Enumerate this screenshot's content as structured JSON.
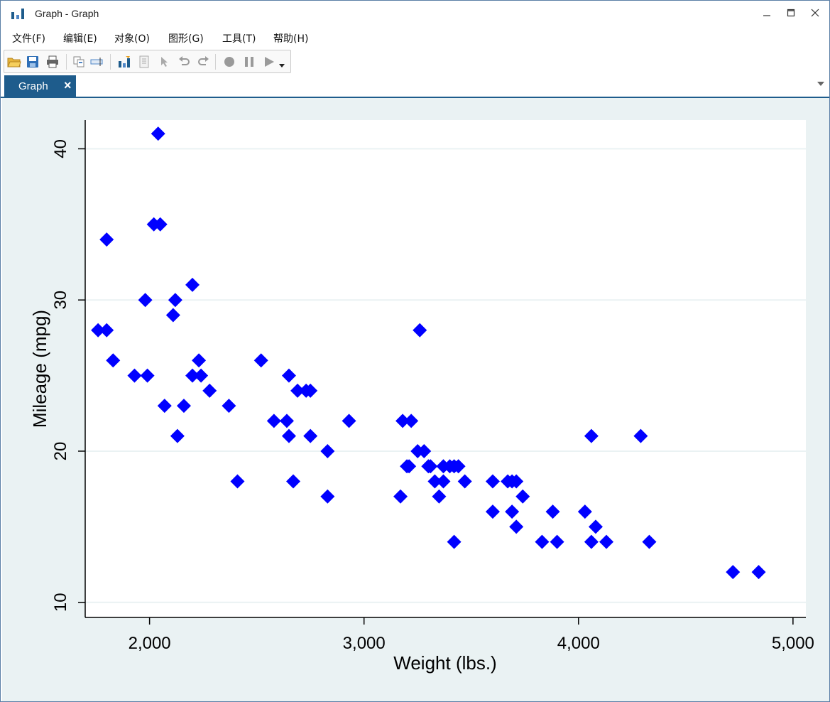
{
  "window": {
    "title": "Graph - Graph",
    "controls": {
      "minimize_icon": "minimize-icon",
      "maximize_icon": "maximize-icon",
      "close_icon": "close-icon"
    }
  },
  "menu": [
    {
      "label": "文件(F)"
    },
    {
      "label": "编辑(E)"
    },
    {
      "label": "对象(O)"
    },
    {
      "label": "图形(G)"
    },
    {
      "label": "工具(T)"
    },
    {
      "label": "帮助(H)"
    }
  ],
  "toolbar": {
    "icons": [
      "open-folder-icon",
      "save-icon",
      "print-icon",
      "copy-graph-icon",
      "rename-icon",
      "graph-editor-icon",
      "properties-icon",
      "pointer-icon",
      "undo-icon",
      "redo-icon",
      "record-icon",
      "pause-icon",
      "play-icon",
      "dropdown-arrow-icon"
    ]
  },
  "tabs": [
    {
      "label": "Graph",
      "close": "×"
    }
  ],
  "colors": {
    "marker": "#0000ff",
    "plot_bg": "#ffffff",
    "graph_bg": "#eaf2f3",
    "grid": "#eaf2f3",
    "tab": "#1e5c8c"
  },
  "chart_data": {
    "type": "scatter",
    "xlabel": "Weight (lbs.)",
    "ylabel": "Mileage (mpg)",
    "xlim": [
      1700,
      5060
    ],
    "ylim": [
      9,
      41.9
    ],
    "xticks": [
      2000,
      3000,
      4000,
      5000
    ],
    "xtick_labels": [
      "2,000",
      "3,000",
      "4,000",
      "5,000"
    ],
    "yticks": [
      10,
      20,
      30,
      40
    ],
    "ytick_labels": [
      "10",
      "20",
      "30",
      "40"
    ],
    "grid": "horizontal",
    "marker": "diamond",
    "points": [
      [
        2040,
        41
      ],
      [
        2020,
        35
      ],
      [
        2050,
        35
      ],
      [
        1800,
        34
      ],
      [
        1980,
        30
      ],
      [
        2120,
        30
      ],
      [
        2200,
        31
      ],
      [
        1760,
        28
      ],
      [
        1800,
        28
      ],
      [
        3260,
        28
      ],
      [
        2110,
        29
      ],
      [
        1830,
        26
      ],
      [
        2230,
        26
      ],
      [
        2520,
        26
      ],
      [
        1930,
        25
      ],
      [
        1990,
        25
      ],
      [
        2200,
        25
      ],
      [
        2240,
        25
      ],
      [
        2650,
        25
      ],
      [
        2280,
        24
      ],
      [
        2690,
        24
      ],
      [
        2730,
        24
      ],
      [
        2750,
        24
      ],
      [
        2070,
        23
      ],
      [
        2160,
        23
      ],
      [
        2370,
        23
      ],
      [
        2580,
        22
      ],
      [
        2640,
        22
      ],
      [
        2930,
        22
      ],
      [
        3180,
        22
      ],
      [
        3220,
        22
      ],
      [
        2130,
        21
      ],
      [
        2650,
        21
      ],
      [
        2750,
        21
      ],
      [
        4060,
        21
      ],
      [
        4290,
        21
      ],
      [
        2830,
        20
      ],
      [
        3250,
        20
      ],
      [
        3280,
        20
      ],
      [
        3200,
        19
      ],
      [
        3210,
        19
      ],
      [
        3300,
        19
      ],
      [
        3310,
        19
      ],
      [
        3370,
        19
      ],
      [
        3400,
        19
      ],
      [
        3420,
        19
      ],
      [
        3440,
        19
      ],
      [
        2410,
        18
      ],
      [
        2670,
        18
      ],
      [
        3330,
        18
      ],
      [
        3370,
        18
      ],
      [
        3470,
        18
      ],
      [
        3600,
        18
      ],
      [
        3670,
        18
      ],
      [
        3690,
        18
      ],
      [
        3710,
        18
      ],
      [
        2830,
        17
      ],
      [
        3170,
        17
      ],
      [
        3350,
        17
      ],
      [
        3740,
        17
      ],
      [
        3600,
        16
      ],
      [
        3690,
        16
      ],
      [
        3880,
        16
      ],
      [
        4030,
        16
      ],
      [
        3710,
        15
      ],
      [
        4080,
        15
      ],
      [
        3420,
        14
      ],
      [
        3830,
        14
      ],
      [
        3900,
        14
      ],
      [
        4060,
        14
      ],
      [
        4130,
        14
      ],
      [
        4330,
        14
      ],
      [
        4720,
        12
      ],
      [
        4840,
        12
      ]
    ]
  }
}
